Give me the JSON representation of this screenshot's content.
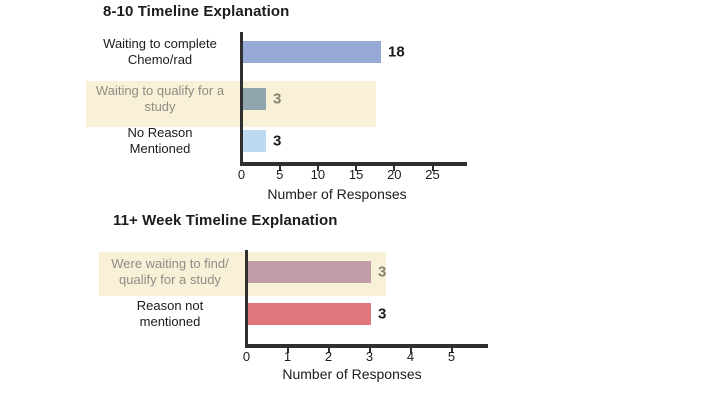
{
  "colors": {
    "text": "#1c1c1c",
    "muted_text": "#8f8d83",
    "muted_value": "#868470",
    "axis": "#2f2f2f",
    "background": "#ffffff"
  },
  "chart_data": [
    {
      "type": "bar",
      "orientation": "horizontal",
      "title": "8-10 Timeline Explanation",
      "xlabel": "Number of Responses",
      "categories": [
        "Waiting to complete\nChemo/rad",
        "Waiting to qualify for a\nstudy",
        "No Reason\nMentioned"
      ],
      "values": [
        18,
        3,
        3
      ],
      "bar_colors": [
        "#96a9d4",
        "#8fa6ae",
        "#bcdaf2"
      ],
      "value_labels": [
        "18",
        "3",
        "3"
      ],
      "highlighted_rows": [
        1
      ],
      "highlight_color": "#f8f1d8",
      "x_ticks": [
        0,
        5,
        10,
        15,
        20,
        25
      ],
      "xlim": [
        0,
        29
      ],
      "grid": false,
      "legend": false
    },
    {
      "type": "bar",
      "orientation": "horizontal",
      "title": "11+ Week Timeline Explanation",
      "xlabel": "Number of Responses",
      "categories": [
        "Were waiting to find/\nqualify for a study",
        "Reason not\nmentioned"
      ],
      "values": [
        3,
        3
      ],
      "bar_colors": [
        "#c19da7",
        "#e0767b"
      ],
      "value_labels": [
        "3",
        "3"
      ],
      "highlighted_rows": [
        0
      ],
      "highlight_color": "#f8f1d8",
      "x_ticks": [
        0,
        1,
        2,
        3,
        4,
        5
      ],
      "xlim": [
        0,
        5.9
      ],
      "grid": false,
      "legend": false
    }
  ]
}
